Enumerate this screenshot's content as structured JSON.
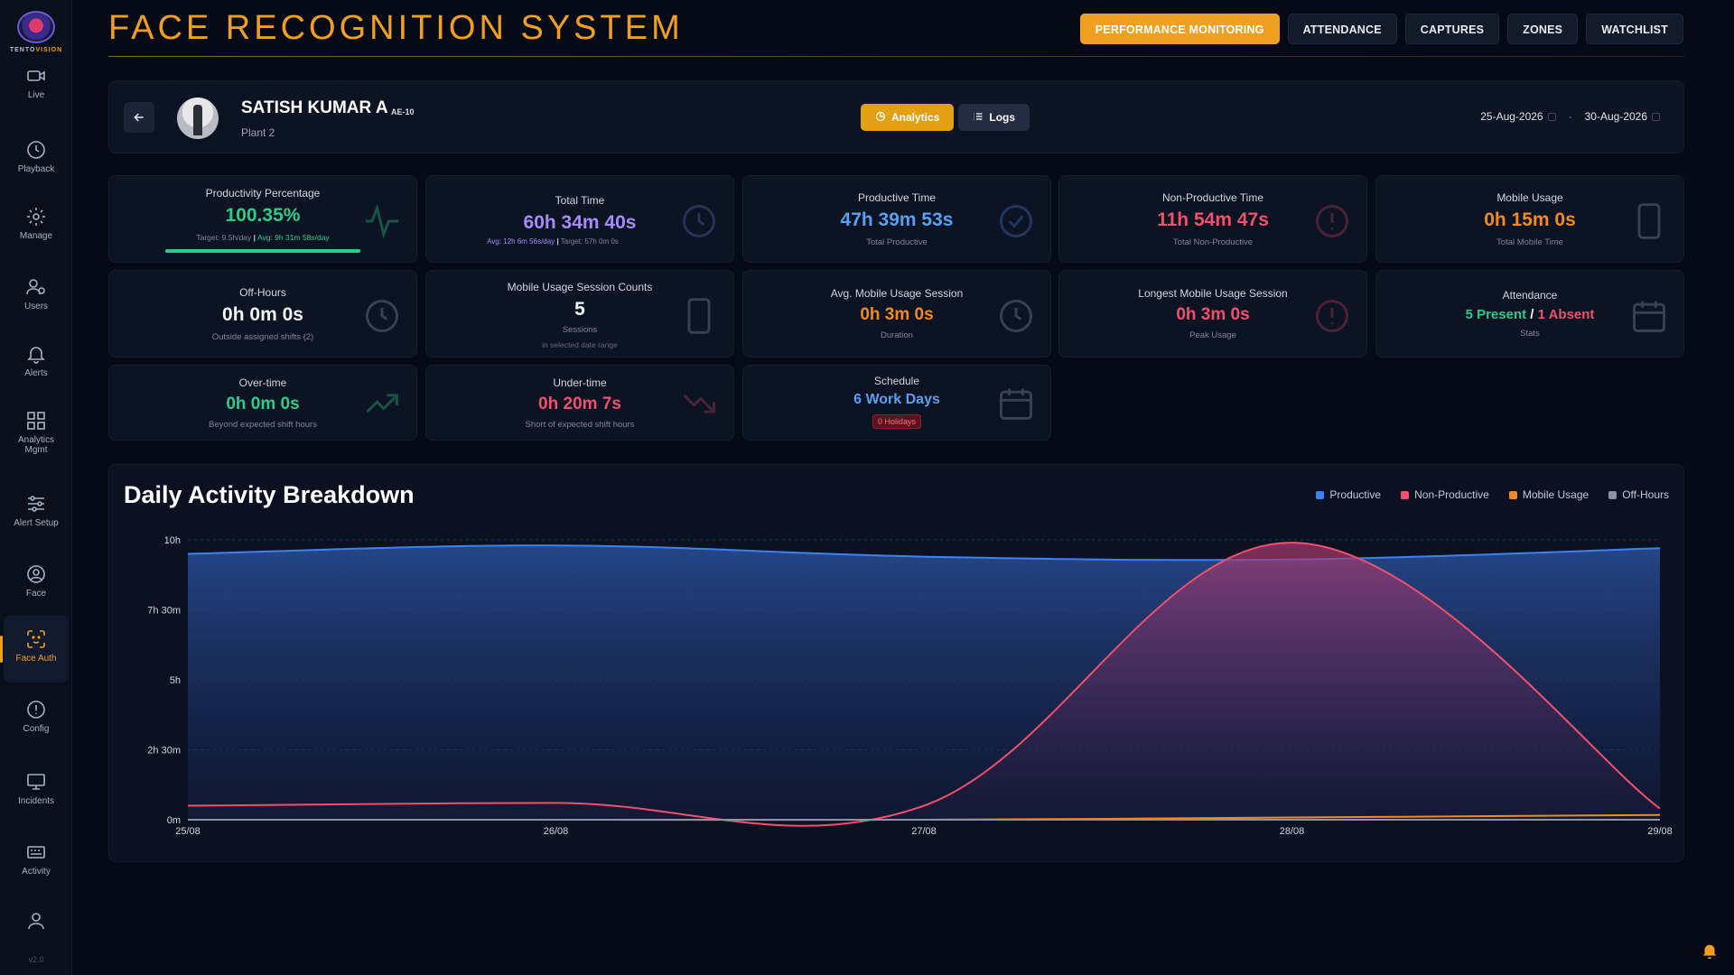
{
  "app": {
    "title": "FACE RECOGNITION SYSTEM",
    "logo_text_a": "TENTO",
    "logo_text_b": "VISION",
    "version": "v2.0"
  },
  "top_tabs": [
    {
      "label": "PERFORMANCE MONITORING",
      "active": true
    },
    {
      "label": "ATTENDANCE"
    },
    {
      "label": "CAPTURES"
    },
    {
      "label": "ZONES"
    },
    {
      "label": "WATCHLIST"
    }
  ],
  "sidebar": {
    "items": [
      {
        "label": "Live",
        "icon": "camera-icon"
      },
      {
        "label": "Playback",
        "icon": "clock-icon"
      },
      {
        "label": "Manage",
        "icon": "gear-icon"
      },
      {
        "label": "Users",
        "icon": "users-icon"
      },
      {
        "label": "Alerts",
        "icon": "bell-icon"
      },
      {
        "label": "Analytics Mgmt",
        "icon": "grid-icon"
      },
      {
        "label": "Alert Setup",
        "icon": "sliders-icon"
      },
      {
        "label": "Face",
        "icon": "face-icon"
      },
      {
        "label": "Face Auth",
        "icon": "face-scan-icon",
        "active": true
      },
      {
        "label": "Config",
        "icon": "alert-circle-icon"
      },
      {
        "label": "Incidents",
        "icon": "monitor-icon"
      },
      {
        "label": "Activity",
        "icon": "activity-icon"
      },
      {
        "label": "",
        "icon": "user-icon"
      }
    ]
  },
  "profile": {
    "name": "SATISH KUMAR A",
    "code": "AE-10",
    "plant": "Plant 2",
    "analytics_label": "Analytics",
    "logs_label": "Logs",
    "date_from": "25-Aug-2026",
    "date_sep": "-",
    "date_to": "30-Aug-2026"
  },
  "cards": {
    "productivity": {
      "title": "Productivity Percentage",
      "value": "100.35%",
      "target": "Target: 9.5h/day",
      "avg": "Avg: 9h 31m 58s/day",
      "progress": 1.0
    },
    "total_time": {
      "title": "Total Time",
      "value": "60h 34m 40s",
      "avg": "Avg: 12h 6m 56s/day",
      "target": "Target: 57h 0m 0s"
    },
    "productive_time": {
      "title": "Productive Time",
      "value": "47h 39m 53s",
      "sub": "Total Productive"
    },
    "non_productive_time": {
      "title": "Non-Productive Time",
      "value": "11h 54m 47s",
      "sub": "Total Non-Productive"
    },
    "mobile_usage": {
      "title": "Mobile Usage",
      "value": "0h 15m 0s",
      "sub": "Total Mobile Time"
    },
    "off_hours": {
      "title": "Off-Hours",
      "value": "0h 0m 0s",
      "sub": "Outside assigned shifts (2)"
    },
    "mobile_sessions": {
      "title": "Mobile Usage Session Counts",
      "value": "5",
      "sub": "Sessions",
      "sub2": "in selected date range"
    },
    "avg_mobile_session": {
      "title": "Avg. Mobile Usage Session",
      "value": "0h 3m 0s",
      "sub": "Duration"
    },
    "longest_mobile_session": {
      "title": "Longest Mobile Usage Session",
      "value": "0h 3m 0s",
      "sub": "Peak Usage"
    },
    "attendance": {
      "title": "Attendance",
      "present": "5 Present",
      "sep": "/",
      "absent": "1 Absent",
      "sub": "Stats"
    },
    "over_time": {
      "title": "Over-time",
      "value": "0h 0m 0s",
      "sub": "Beyond expected shift hours"
    },
    "under_time": {
      "title": "Under-time",
      "value": "0h 20m 7s",
      "sub": "Short of expected shift hours"
    },
    "schedule": {
      "title": "Schedule",
      "value": "6 Work Days",
      "badge": "0 Holidays"
    }
  },
  "chart_data": {
    "type": "area",
    "title": "Daily Activity Breakdown",
    "x": [
      "25/08",
      "26/08",
      "27/08",
      "28/08",
      "29/08"
    ],
    "y_ticks": [
      "0m",
      "2h 30m",
      "5h",
      "7h 30m",
      "10h"
    ],
    "ylim": [
      0,
      10
    ],
    "legend_position": "top-right",
    "grid": true,
    "series": [
      {
        "name": "Productive",
        "color": "#3b82f6",
        "values": [
          9.5,
          9.8,
          9.4,
          9.3,
          9.7
        ]
      },
      {
        "name": "Non-Productive",
        "color": "#f0506e",
        "values": [
          0.5,
          0.6,
          0.5,
          9.9,
          0.4
        ]
      },
      {
        "name": "Mobile Usage",
        "color": "#f08a24",
        "values": [
          0.0,
          0.0,
          0.0,
          0.08,
          0.17
        ]
      },
      {
        "name": "Off-Hours",
        "color": "#8a93a8",
        "values": [
          0,
          0,
          0,
          0,
          0
        ]
      }
    ]
  }
}
